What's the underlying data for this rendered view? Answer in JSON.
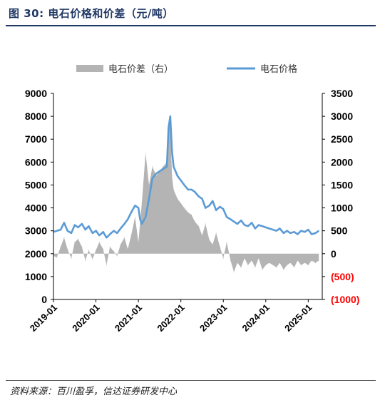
{
  "header": {
    "title": "图 30:  电石价格和价差（元/吨）"
  },
  "footer": {
    "source": "资料来源：百川盈孚，信达证券研发中心"
  },
  "chart_data": {
    "type": "line+area",
    "title": "",
    "legend": {
      "placement": "top-center",
      "items": [
        {
          "name": "电石价差（右）",
          "color": "#b4b4b4",
          "kind": "area"
        },
        {
          "name": "电石价格",
          "color": "#5b9bd5",
          "kind": "line"
        }
      ]
    },
    "x_ticks": [
      "2019-01",
      "2020-01",
      "2021-01",
      "2022-01",
      "2023-01",
      "2024-01",
      "2025-01"
    ],
    "x_range": [
      "2019-01",
      "2025-04"
    ],
    "left_axis": {
      "min": 0,
      "max": 9000,
      "ticks": [
        "0",
        "1000",
        "2000",
        "3000",
        "4000",
        "5000",
        "6000",
        "7000",
        "8000",
        "9000"
      ]
    },
    "right_axis": {
      "min": -1000,
      "max": 3500,
      "ticks": [
        "(1000)",
        "(500)",
        "0",
        "500",
        "1000",
        "1500",
        "2000",
        "2500",
        "3000",
        "3500"
      ],
      "negative_color": "#ff0000"
    },
    "grid": false,
    "series": [
      {
        "name": "电石价格",
        "axis": "left",
        "color": "#5b9bd5",
        "x": [
          2019.0,
          2019.08,
          2019.17,
          2019.25,
          2019.33,
          2019.42,
          2019.5,
          2019.58,
          2019.67,
          2019.75,
          2019.83,
          2019.92,
          2020.0,
          2020.08,
          2020.17,
          2020.25,
          2020.33,
          2020.42,
          2020.5,
          2020.58,
          2020.67,
          2020.75,
          2020.83,
          2020.92,
          2021.0,
          2021.04,
          2021.08,
          2021.17,
          2021.25,
          2021.33,
          2021.42,
          2021.5,
          2021.58,
          2021.67,
          2021.71,
          2021.75,
          2021.79,
          2021.83,
          2021.92,
          2022.0,
          2022.08,
          2022.17,
          2022.25,
          2022.33,
          2022.42,
          2022.5,
          2022.58,
          2022.67,
          2022.75,
          2022.83,
          2022.92,
          2023.0,
          2023.08,
          2023.17,
          2023.25,
          2023.33,
          2023.42,
          2023.5,
          2023.58,
          2023.67,
          2023.75,
          2023.83,
          2023.92,
          2024.0,
          2024.08,
          2024.17,
          2024.25,
          2024.33,
          2024.42,
          2024.5,
          2024.58,
          2024.67,
          2024.75,
          2024.83,
          2024.92,
          2025.0,
          2025.08,
          2025.17,
          2025.25
        ],
        "y": [
          2950,
          3000,
          3050,
          3350,
          3000,
          2900,
          3250,
          3150,
          3300,
          3050,
          3200,
          2900,
          3000,
          2800,
          2950,
          2700,
          2850,
          3000,
          2900,
          3100,
          3300,
          3500,
          3800,
          4100,
          4000,
          3500,
          3300,
          3600,
          4400,
          5300,
          5500,
          5600,
          5700,
          5800,
          7500,
          8000,
          6500,
          5800,
          5400,
          5200,
          5000,
          4800,
          4800,
          4700,
          4500,
          4400,
          4000,
          4100,
          4300,
          3900,
          4050,
          3950,
          3600,
          3500,
          3400,
          3300,
          3450,
          3250,
          3200,
          3350,
          3100,
          3250,
          3200,
          3150,
          3100,
          3050,
          3000,
          3100,
          2900,
          3000,
          2900,
          2950,
          2850,
          3000,
          2950,
          3050,
          2850,
          2900,
          3000
        ]
      },
      {
        "name": "电石价差（右）",
        "axis": "right",
        "color": "#b4b4b4",
        "x": [
          2019.0,
          2019.08,
          2019.17,
          2019.25,
          2019.33,
          2019.42,
          2019.5,
          2019.58,
          2019.67,
          2019.75,
          2019.83,
          2019.92,
          2020.0,
          2020.08,
          2020.17,
          2020.25,
          2020.33,
          2020.42,
          2020.5,
          2020.58,
          2020.67,
          2020.75,
          2020.83,
          2020.92,
          2021.0,
          2021.08,
          2021.17,
          2021.25,
          2021.33,
          2021.42,
          2021.5,
          2021.58,
          2021.67,
          2021.71,
          2021.75,
          2021.79,
          2021.83,
          2021.92,
          2022.0,
          2022.08,
          2022.17,
          2022.25,
          2022.33,
          2022.42,
          2022.5,
          2022.58,
          2022.67,
          2022.75,
          2022.83,
          2022.92,
          2023.0,
          2023.08,
          2023.17,
          2023.25,
          2023.33,
          2023.42,
          2023.5,
          2023.58,
          2023.67,
          2023.75,
          2023.83,
          2023.92,
          2024.0,
          2024.08,
          2024.17,
          2024.25,
          2024.33,
          2024.42,
          2024.5,
          2024.58,
          2024.67,
          2024.75,
          2024.83,
          2024.92,
          2025.0,
          2025.08,
          2025.17,
          2025.25
        ],
        "y": [
          -50,
          -80,
          150,
          350,
          100,
          -100,
          250,
          320,
          150,
          -150,
          80,
          -120,
          80,
          250,
          100,
          -250,
          150,
          50,
          -50,
          200,
          350,
          100,
          400,
          800,
          250,
          1100,
          2200,
          1500,
          1900,
          1700,
          1800,
          1900,
          2000,
          2600,
          3000,
          1700,
          1400,
          1200,
          1100,
          1000,
          900,
          850,
          700,
          600,
          400,
          650,
          300,
          200,
          450,
          150,
          -100,
          250,
          -150,
          -400,
          -200,
          -300,
          -100,
          -250,
          -150,
          -300,
          -100,
          -350,
          -250,
          -200,
          -250,
          -300,
          -200,
          -350,
          -250,
          -200,
          -300,
          -150,
          -250,
          -200,
          -250,
          -150,
          -200,
          -150
        ]
      }
    ]
  }
}
